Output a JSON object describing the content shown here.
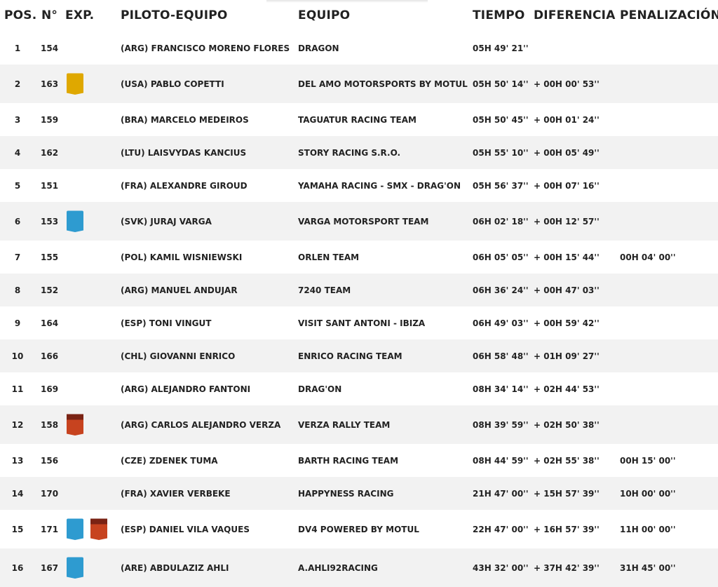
{
  "header": {
    "pos": "POS.",
    "num": "N°",
    "exp": "EXP.",
    "piloto": "PILOTO-EQUIPO",
    "equipo": "EQUIPO",
    "tiempo": "TIEMPO",
    "diferencia": "DIFERENCIA",
    "penalizacion": "PENALIZACIÓN"
  },
  "badge_colors": {
    "gold": "#dfa800",
    "blue": "#2e9bd0",
    "red": "#c7431f"
  },
  "rows": [
    {
      "pos": "1",
      "num": "154",
      "exp": [],
      "piloto": "(ARG)  FRANCISCO MORENO FLORES",
      "equipo": "DRAGON",
      "tiempo": "05H 49' 21''",
      "diferencia": "",
      "penalizacion": ""
    },
    {
      "pos": "2",
      "num": "163",
      "exp": [
        "gold"
      ],
      "piloto": "(USA)  PABLO COPETTI",
      "equipo": "DEL AMO MOTORSPORTS BY MOTUL",
      "tiempo": "05H 50' 14''",
      "diferencia": "+ 00H 00' 53''",
      "penalizacion": ""
    },
    {
      "pos": "3",
      "num": "159",
      "exp": [],
      "piloto": "(BRA)  MARCELO MEDEIROS",
      "equipo": "TAGUATUR RACING TEAM",
      "tiempo": "05H 50' 45''",
      "diferencia": "+ 00H 01' 24''",
      "penalizacion": ""
    },
    {
      "pos": "4",
      "num": "162",
      "exp": [],
      "piloto": "(LTU)  LAISVYDAS KANCIUS",
      "equipo": "STORY RACING S.R.O.",
      "tiempo": "05H 55' 10''",
      "diferencia": "+ 00H 05' 49''",
      "penalizacion": ""
    },
    {
      "pos": "5",
      "num": "151",
      "exp": [],
      "piloto": "(FRA)  ALEXANDRE GIROUD",
      "equipo": "YAMAHA RACING - SMX - DRAG'ON",
      "tiempo": "05H 56' 37''",
      "diferencia": "+ 00H 07' 16''",
      "penalizacion": ""
    },
    {
      "pos": "6",
      "num": "153",
      "exp": [
        "blue"
      ],
      "piloto": "(SVK)  JURAJ VARGA",
      "equipo": "VARGA MOTORSPORT TEAM",
      "tiempo": "06H 02' 18''",
      "diferencia": "+ 00H 12' 57''",
      "penalizacion": ""
    },
    {
      "pos": "7",
      "num": "155",
      "exp": [],
      "piloto": "(POL)  KAMIL WISNIEWSKI",
      "equipo": "ORLEN TEAM",
      "tiempo": "06H 05' 05''",
      "diferencia": "+ 00H 15' 44''",
      "penalizacion": "00H 04' 00''"
    },
    {
      "pos": "8",
      "num": "152",
      "exp": [],
      "piloto": "(ARG)  MANUEL ANDUJAR",
      "equipo": "7240 TEAM",
      "tiempo": "06H 36' 24''",
      "diferencia": "+ 00H 47' 03''",
      "penalizacion": ""
    },
    {
      "pos": "9",
      "num": "164",
      "exp": [],
      "piloto": "(ESP)  TONI VINGUT",
      "equipo": "VISIT SANT ANTONI - IBIZA",
      "tiempo": "06H 49' 03''",
      "diferencia": "+ 00H 59' 42''",
      "penalizacion": ""
    },
    {
      "pos": "10",
      "num": "166",
      "exp": [],
      "piloto": "(CHL)  GIOVANNI ENRICO",
      "equipo": "ENRICO RACING TEAM",
      "tiempo": "06H 58' 48''",
      "diferencia": "+ 01H 09' 27''",
      "penalizacion": ""
    },
    {
      "pos": "11",
      "num": "169",
      "exp": [],
      "piloto": "(ARG)  ALEJANDRO FANTONI",
      "equipo": "DRAG'ON",
      "tiempo": "08H 34' 14''",
      "diferencia": "+ 02H 44' 53''",
      "penalizacion": ""
    },
    {
      "pos": "12",
      "num": "158",
      "exp": [
        "red"
      ],
      "piloto": "(ARG)  CARLOS ALEJANDRO VERZA",
      "equipo": "VERZA RALLY TEAM",
      "tiempo": "08H 39' 59''",
      "diferencia": "+ 02H 50' 38''",
      "penalizacion": ""
    },
    {
      "pos": "13",
      "num": "156",
      "exp": [],
      "piloto": "(CZE)  ZDENEK TUMA",
      "equipo": "BARTH RACING TEAM",
      "tiempo": "08H 44' 59''",
      "diferencia": "+ 02H 55' 38''",
      "penalizacion": "00H 15' 00''"
    },
    {
      "pos": "14",
      "num": "170",
      "exp": [],
      "piloto": "(FRA)  XAVIER VERBEKE",
      "equipo": "HAPPYNESS RACING",
      "tiempo": "21H 47' 00''",
      "diferencia": "+ 15H 57' 39''",
      "penalizacion": "10H 00' 00''"
    },
    {
      "pos": "15",
      "num": "171",
      "exp": [
        "blue",
        "red"
      ],
      "piloto": "(ESP)  DANIEL VILA VAQUES",
      "equipo": "DV4 POWERED BY MOTUL",
      "tiempo": "22H 47' 00''",
      "diferencia": "+ 16H 57' 39''",
      "penalizacion": "11H 00' 00''"
    },
    {
      "pos": "16",
      "num": "167",
      "exp": [
        "blue"
      ],
      "piloto": "(ARE)  ABDULAZIZ AHLI",
      "equipo": "A.AHLI92RACING",
      "tiempo": "43H 32' 00''",
      "diferencia": "+ 37H 42' 39''",
      "penalizacion": "31H 45' 00''"
    }
  ]
}
